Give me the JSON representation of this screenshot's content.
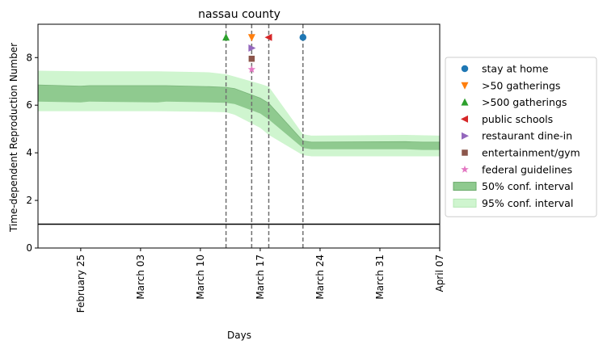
{
  "chart_data": {
    "type": "area",
    "title": "nassau county",
    "xlabel": "Days",
    "ylabel": "Time-dependent Reproduction Number",
    "x_range": [
      "2020-02-20",
      "2020-04-07"
    ],
    "ylim": [
      0,
      9.4
    ],
    "x_ticks": [
      {
        "date": "2020-02-25",
        "label": "February 25"
      },
      {
        "date": "2020-03-03",
        "label": "March 03"
      },
      {
        "date": "2020-03-10",
        "label": "March 10"
      },
      {
        "date": "2020-03-17",
        "label": "March 17"
      },
      {
        "date": "2020-03-24",
        "label": "March 24"
      },
      {
        "date": "2020-03-31",
        "label": "March 31"
      },
      {
        "date": "2020-04-07",
        "label": "April 07"
      }
    ],
    "y_ticks": [
      0,
      2,
      4,
      6,
      8
    ],
    "reference_line": 1,
    "ci50": {
      "label": "50% conf. interval",
      "color": "#8fca8f",
      "points": [
        {
          "date": "2020-02-20",
          "lo": 6.15,
          "hi": 6.85
        },
        {
          "date": "2020-02-25",
          "lo": 6.12,
          "hi": 6.8
        },
        {
          "date": "2020-02-26",
          "lo": 6.15,
          "hi": 6.82
        },
        {
          "date": "2020-03-05",
          "lo": 6.12,
          "hi": 6.82
        },
        {
          "date": "2020-03-06",
          "lo": 6.15,
          "hi": 6.82
        },
        {
          "date": "2020-03-11",
          "lo": 6.12,
          "hi": 6.78
        },
        {
          "date": "2020-03-13",
          "lo": 6.1,
          "hi": 6.75
        },
        {
          "date": "2020-03-14",
          "lo": 6.05,
          "hi": 6.7
        },
        {
          "date": "2020-03-17",
          "lo": 5.65,
          "hi": 6.3
        },
        {
          "date": "2020-03-18",
          "lo": 5.4,
          "hi": 6.08
        },
        {
          "date": "2020-03-22",
          "lo": 4.2,
          "hi": 4.5
        },
        {
          "date": "2020-03-23",
          "lo": 4.15,
          "hi": 4.45
        },
        {
          "date": "2020-04-03",
          "lo": 4.15,
          "hi": 4.47
        },
        {
          "date": "2020-04-05",
          "lo": 4.12,
          "hi": 4.45
        },
        {
          "date": "2020-04-07",
          "lo": 4.12,
          "hi": 4.45
        }
      ]
    },
    "ci95": {
      "label": "95% conf. interval",
      "color": "#cff5cf",
      "points": [
        {
          "date": "2020-02-20",
          "lo": 5.75,
          "hi": 7.45
        },
        {
          "date": "2020-02-25",
          "lo": 5.75,
          "hi": 7.42
        },
        {
          "date": "2020-03-05",
          "lo": 5.75,
          "hi": 7.42
        },
        {
          "date": "2020-03-11",
          "lo": 5.72,
          "hi": 7.38
        },
        {
          "date": "2020-03-13",
          "lo": 5.7,
          "hi": 7.3
        },
        {
          "date": "2020-03-14",
          "lo": 5.6,
          "hi": 7.2
        },
        {
          "date": "2020-03-17",
          "lo": 5.05,
          "hi": 6.9
        },
        {
          "date": "2020-03-18",
          "lo": 4.75,
          "hi": 6.78
        },
        {
          "date": "2020-03-22",
          "lo": 3.9,
          "hi": 4.78
        },
        {
          "date": "2020-03-23",
          "lo": 3.85,
          "hi": 4.72
        },
        {
          "date": "2020-04-03",
          "lo": 3.85,
          "hi": 4.75
        },
        {
          "date": "2020-04-07",
          "lo": 3.85,
          "hi": 4.72
        }
      ]
    },
    "interventions": [
      {
        "name": "stay at home",
        "date": "2020-03-22",
        "y": 8.85,
        "marker": "circle",
        "color": "#1f77b4"
      },
      {
        "name": ">50 gatherings",
        "date": "2020-03-16",
        "y": 8.85,
        "marker": "triangle-down",
        "color": "#ff7f0e"
      },
      {
        "name": ">500 gatherings",
        "date": "2020-03-13",
        "y": 8.85,
        "marker": "triangle-up",
        "color": "#2ca02c"
      },
      {
        "name": "public schools",
        "date": "2020-03-18",
        "y": 8.85,
        "marker": "triangle-left",
        "color": "#d62728"
      },
      {
        "name": "restaurant dine-in",
        "date": "2020-03-16",
        "y": 8.4,
        "marker": "triangle-right",
        "color": "#9467bd"
      },
      {
        "name": "entertainment/gym",
        "date": "2020-03-16",
        "y": 7.95,
        "marker": "square",
        "color": "#8c564b"
      },
      {
        "name": "federal guidelines",
        "date": "2020-03-16",
        "y": 7.5,
        "marker": "star",
        "color": "#e377c2"
      }
    ],
    "vlines": [
      "2020-03-13",
      "2020-03-16",
      "2020-03-18",
      "2020-03-22"
    ],
    "legend_position": "right"
  }
}
